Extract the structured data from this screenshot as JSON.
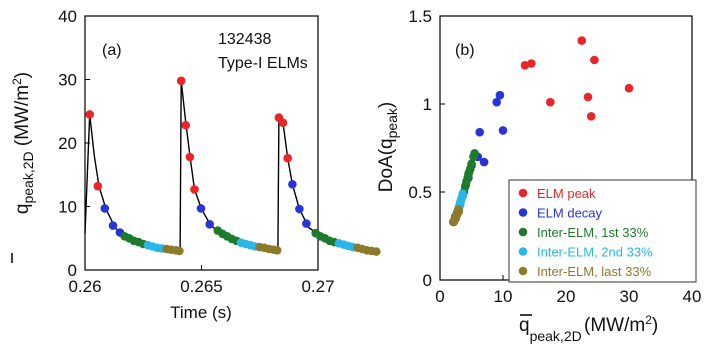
{
  "chart_data": [
    {
      "type": "line",
      "panel_label": "(a)",
      "annotation": [
        "132438",
        "Type-I ELMs"
      ],
      "xlabel": "Time (s)",
      "ylabel": {
        "main": "q",
        "sub": "peak,2D",
        "units": " (MW/m",
        "sup": "2",
        "close": ")"
      },
      "xlim": [
        0.26,
        0.27
      ],
      "ylim": [
        0,
        40
      ],
      "xticks": [
        0.26,
        0.265,
        0.27
      ],
      "xtick_labels": [
        "0.26",
        "0.265",
        "0.27"
      ],
      "yticks": [
        0,
        10,
        20,
        30,
        40
      ],
      "ytick_labels": [
        "0",
        "10",
        "20",
        "30",
        "40"
      ],
      "line_color": "#000000",
      "trace": [
        [
          0.26,
          5.8
        ],
        [
          0.2602,
          24.5
        ],
        [
          0.2604,
          18.0
        ],
        [
          0.2606,
          13.2
        ],
        [
          0.2609,
          9.6
        ],
        [
          0.2613,
          6.6
        ],
        [
          0.2618,
          5.0
        ],
        [
          0.2625,
          3.9
        ],
        [
          0.2633,
          3.2
        ],
        [
          0.26408,
          2.9
        ],
        [
          0.26413,
          29.8
        ],
        [
          0.2643,
          24.0
        ],
        [
          0.2645,
          18.0
        ],
        [
          0.2647,
          12.7
        ],
        [
          0.265,
          9.6
        ],
        [
          0.2654,
          7.0
        ],
        [
          0.266,
          5.4
        ],
        [
          0.2668,
          4.1
        ],
        [
          0.2676,
          3.4
        ],
        [
          0.26828,
          3.0
        ],
        [
          0.26832,
          24.0
        ],
        [
          0.2685,
          23.2
        ],
        [
          0.2687,
          17.6
        ],
        [
          0.2689,
          13.5
        ],
        [
          0.2692,
          9.6
        ],
        [
          0.2696,
          6.7
        ],
        [
          0.2702,
          5.1
        ],
        [
          0.271,
          4.0
        ],
        [
          0.2718,
          3.3
        ],
        [
          0.2725,
          2.9
        ]
      ],
      "series": [
        {
          "name": "ELM peak",
          "color": "#e8262a",
          "points": [
            [
              0.2602,
              24.5
            ],
            [
              0.26055,
              13.2
            ],
            [
              0.26413,
              29.8
            ],
            [
              0.26432,
              22.8
            ],
            [
              0.2645,
              17.8
            ],
            [
              0.2647,
              12.7
            ],
            [
              0.26832,
              24.0
            ],
            [
              0.2685,
              23.2
            ],
            [
              0.2687,
              17.6
            ]
          ]
        },
        {
          "name": "ELM decay",
          "color": "#2634d8",
          "points": [
            [
              0.26085,
              9.7
            ],
            [
              0.2612,
              7.0
            ],
            [
              0.2615,
              5.9
            ],
            [
              0.26498,
              9.7
            ],
            [
              0.26535,
              7.2
            ],
            [
              0.2689,
              13.5
            ],
            [
              0.2692,
              9.6
            ],
            [
              0.2695,
              7.3
            ]
          ]
        },
        {
          "name": "Inter-ELM, 1st 33%",
          "color": "#1f7a2e",
          "points": [
            [
              0.2617,
              5.3
            ],
            [
              0.2619,
              5.0
            ],
            [
              0.2621,
              4.6
            ],
            [
              0.2623,
              4.4
            ],
            [
              0.2625,
              4.1
            ],
            [
              0.2657,
              6.2
            ],
            [
              0.2659,
              5.7
            ],
            [
              0.2661,
              5.3
            ],
            [
              0.2663,
              4.9
            ],
            [
              0.2665,
              4.6
            ],
            [
              0.2699,
              5.8
            ],
            [
              0.2701,
              5.3
            ],
            [
              0.2703,
              5.0
            ],
            [
              0.2705,
              4.6
            ],
            [
              0.2707,
              4.4
            ]
          ]
        },
        {
          "name": "Inter-ELM, 2nd 33%",
          "color": "#29b6e8",
          "points": [
            [
              0.2627,
              3.9
            ],
            [
              0.2629,
              3.7
            ],
            [
              0.2631,
              3.5
            ],
            [
              0.2633,
              3.4
            ],
            [
              0.2667,
              4.3
            ],
            [
              0.2669,
              4.1
            ],
            [
              0.2671,
              3.9
            ],
            [
              0.2673,
              3.7
            ],
            [
              0.2709,
              4.2
            ],
            [
              0.2711,
              4.0
            ],
            [
              0.2713,
              3.8
            ],
            [
              0.2715,
              3.6
            ]
          ]
        },
        {
          "name": "Inter-ELM, last 33%",
          "color": "#8c7a2a",
          "points": [
            [
              0.2635,
              3.3
            ],
            [
              0.2637,
              3.2
            ],
            [
              0.2639,
              3.1
            ],
            [
              0.26405,
              3.0
            ],
            [
              0.2675,
              3.6
            ],
            [
              0.2677,
              3.5
            ],
            [
              0.2679,
              3.3
            ],
            [
              0.2681,
              3.2
            ],
            [
              0.26825,
              3.1
            ],
            [
              0.2717,
              3.5
            ],
            [
              0.2719,
              3.3
            ],
            [
              0.2721,
              3.1
            ],
            [
              0.2723,
              3.0
            ],
            [
              0.2725,
              2.9
            ]
          ]
        }
      ]
    },
    {
      "type": "scatter",
      "panel_label": "(b)",
      "xlabel": {
        "main": "q",
        "sub": "peak,2D",
        "units": "(MW/m",
        "sup": "2",
        "close": ")"
      },
      "ylabel": {
        "main": "DoA(q",
        "sub": "peak",
        "close": ")"
      },
      "xlim": [
        0,
        40
      ],
      "ylim": [
        0,
        1.5
      ],
      "xticks": [
        0,
        10,
        20,
        30,
        40
      ],
      "xtick_labels": [
        "0",
        "10",
        "20",
        "30",
        "40"
      ],
      "yticks": [
        0,
        0.5,
        1,
        1.5
      ],
      "ytick_labels": [
        "0",
        "0.5",
        "1",
        "1.5"
      ],
      "legend_position": "lower-right",
      "series": [
        {
          "name": "ELM peak",
          "color": "#e8262a",
          "points": [
            [
              13.5,
              1.22
            ],
            [
              14.5,
              1.23
            ],
            [
              17.5,
              1.01
            ],
            [
              22.5,
              1.36
            ],
            [
              23.5,
              1.04
            ],
            [
              24.0,
              0.93
            ],
            [
              24.5,
              1.25
            ],
            [
              30.0,
              1.09
            ]
          ]
        },
        {
          "name": "ELM decay",
          "color": "#2634d8",
          "points": [
            [
              6.0,
              0.7
            ],
            [
              6.3,
              0.84
            ],
            [
              7.0,
              0.67
            ],
            [
              9.0,
              1.01
            ],
            [
              9.5,
              1.05
            ],
            [
              10.0,
              0.85
            ],
            [
              5.0,
              0.65
            ],
            [
              4.5,
              0.58
            ]
          ]
        },
        {
          "name": "Inter-ELM, 1st 33%",
          "color": "#1f7a2e",
          "points": [
            [
              3.2,
              0.43
            ],
            [
              3.5,
              0.47
            ],
            [
              3.8,
              0.5
            ],
            [
              4.0,
              0.53
            ],
            [
              4.2,
              0.56
            ],
            [
              4.4,
              0.58
            ],
            [
              4.6,
              0.61
            ],
            [
              4.8,
              0.63
            ],
            [
              5.0,
              0.66
            ],
            [
              5.3,
              0.7
            ],
            [
              5.5,
              0.72
            ],
            [
              3.0,
              0.41
            ],
            [
              3.6,
              0.48
            ],
            [
              4.1,
              0.54
            ],
            [
              4.5,
              0.6
            ]
          ]
        },
        {
          "name": "Inter-ELM, 2nd 33%",
          "color": "#29b6e8",
          "points": [
            [
              2.8,
              0.39
            ],
            [
              3.0,
              0.41
            ],
            [
              3.2,
              0.44
            ],
            [
              3.4,
              0.46
            ],
            [
              2.9,
              0.4
            ],
            [
              3.3,
              0.45
            ],
            [
              3.5,
              0.47
            ],
            [
              3.1,
              0.42
            ],
            [
              2.7,
              0.38
            ],
            [
              3.6,
              0.49
            ]
          ]
        },
        {
          "name": "Inter-ELM, last 33%",
          "color": "#8c7a2a",
          "points": [
            [
              2.2,
              0.33
            ],
            [
              2.4,
              0.35
            ],
            [
              2.5,
              0.36
            ],
            [
              2.6,
              0.37
            ],
            [
              2.8,
              0.38
            ],
            [
              2.3,
              0.34
            ],
            [
              2.5,
              0.35
            ],
            [
              2.9,
              0.4
            ],
            [
              2.1,
              0.33
            ],
            [
              2.7,
              0.37
            ],
            [
              3.0,
              0.39
            ],
            [
              2.4,
              0.36
            ]
          ]
        }
      ]
    }
  ]
}
